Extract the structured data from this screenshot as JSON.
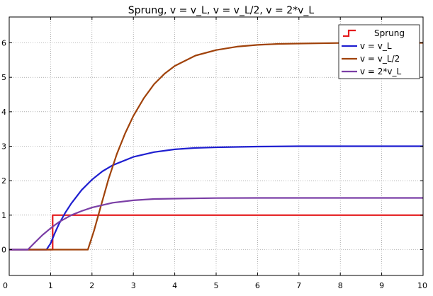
{
  "chart_data": {
    "type": "line",
    "title": "Sprung, v = v_L, v = v_L/2, v = 2*v_L",
    "xlabel": "",
    "ylabel": "",
    "xlim": [
      0,
      10
    ],
    "ylim": [
      -0.75,
      6.75
    ],
    "xticks": [
      0,
      1,
      2,
      3,
      4,
      5,
      6,
      7,
      8,
      9,
      10
    ],
    "yticks": [
      0,
      1,
      2,
      3,
      4,
      5,
      6
    ],
    "grid": true,
    "legend_position": "top-right",
    "series": [
      {
        "name": "Sprung",
        "color": "#e41a1c",
        "step": true,
        "x": [
          0,
          1.05,
          1.05,
          10
        ],
        "y": [
          0,
          0,
          1,
          1
        ]
      },
      {
        "name": "v = v_L",
        "color": "#1f1fd0",
        "x": [
          0,
          0.9,
          1.0,
          1.1,
          1.2,
          1.35,
          1.5,
          1.75,
          2.0,
          2.25,
          2.5,
          3.0,
          3.5,
          4.0,
          4.5,
          5.0,
          6.0,
          7.0,
          8.0,
          9.0,
          10.0
        ],
        "y": [
          0,
          0,
          0.18,
          0.47,
          0.74,
          1.06,
          1.34,
          1.73,
          2.03,
          2.27,
          2.45,
          2.69,
          2.83,
          2.91,
          2.95,
          2.97,
          2.99,
          3.0,
          3.0,
          3.0,
          3.0
        ]
      },
      {
        "name": "v = v_L/2",
        "color": "#a0420a",
        "x": [
          0,
          1.9,
          2.05,
          2.2,
          2.4,
          2.6,
          2.8,
          3.0,
          3.25,
          3.5,
          3.75,
          4.0,
          4.5,
          5.0,
          5.5,
          6.0,
          6.5,
          7.0,
          8.0,
          9.0,
          10.0
        ],
        "y": [
          0,
          0,
          0.55,
          1.2,
          2.05,
          2.77,
          3.37,
          3.88,
          4.39,
          4.8,
          5.1,
          5.33,
          5.63,
          5.79,
          5.89,
          5.94,
          5.97,
          5.98,
          5.995,
          6.0,
          6.0
        ]
      },
      {
        "name": "v = 2*v_L",
        "color": "#7b3fa6",
        "x": [
          0,
          0.45,
          0.6,
          0.8,
          1.0,
          1.2,
          1.5,
          1.75,
          2.0,
          2.5,
          3.0,
          3.5,
          4.0,
          5.0,
          6.0,
          7.0,
          8.0,
          9.0,
          10.0
        ],
        "y": [
          0,
          0,
          0.18,
          0.42,
          0.62,
          0.8,
          1.0,
          1.12,
          1.22,
          1.36,
          1.43,
          1.47,
          1.48,
          1.495,
          1.5,
          1.5,
          1.5,
          1.5,
          1.5
        ]
      }
    ]
  }
}
